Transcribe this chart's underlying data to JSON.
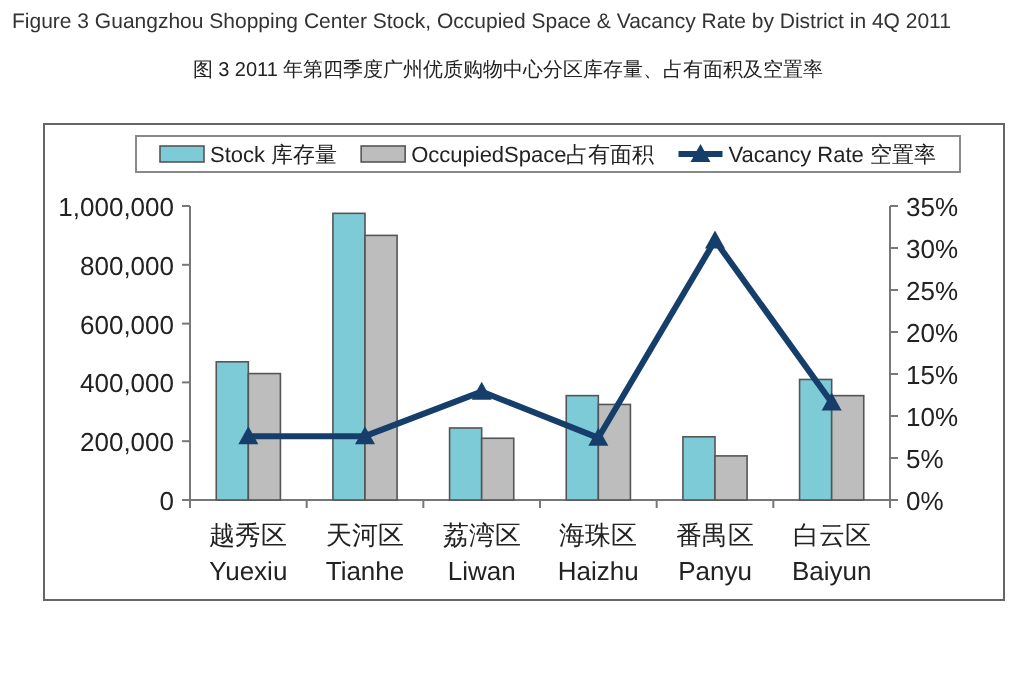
{
  "chart_data": {
    "type": "bar",
    "title": "Figure 3 Guangzhou Shopping Center Stock, Occupied Space & Vacancy Rate by District in 4Q 2011",
    "subtitle": "图 3  2011 年第四季度广州优质购物中心分区库存量、占有面积及空置率",
    "categories": [
      "越秀区\nYuexiu",
      "天河区\nTianhe",
      "荔湾区\nLiwan",
      "海珠区\nHaizhu",
      "番禺区\nPanyu",
      "白云区\nBaiyun"
    ],
    "series": [
      {
        "name": "Stock 库存量",
        "color": "#7ecbd8",
        "values": [
          470000,
          975000,
          245000,
          355000,
          215000,
          410000
        ]
      },
      {
        "name": "OccupiedSpace占有面积",
        "color": "#bdbdbd",
        "values": [
          430000,
          900000,
          210000,
          325000,
          150000,
          355000
        ]
      },
      {
        "type": "line",
        "axis": "y2",
        "name": "Vacancy Rate 空置率",
        "color": "#163e6b",
        "values": [
          7.6,
          7.6,
          12.9,
          7.4,
          30.9,
          11.6
        ]
      }
    ],
    "ylim": [
      0,
      1000000
    ],
    "yticks": [
      0,
      {
        "value": 200000,
        "label": "200,000"
      },
      {
        "value": 400000,
        "label": "400,000"
      },
      {
        "value": 600000,
        "label": "600,000"
      },
      {
        "value": 800000,
        "label": "800,000"
      },
      {
        "value": 1000000,
        "label": "1,000,000"
      }
    ],
    "y2lim": [
      0,
      35
    ],
    "y2ticks": [
      {
        "value": 0,
        "label": "0%"
      },
      {
        "value": 5,
        "label": "5%"
      },
      {
        "value": 10,
        "label": "10%"
      },
      {
        "value": 15,
        "label": "15%"
      },
      {
        "value": 20,
        "label": "20%"
      },
      {
        "value": 25,
        "label": "25%"
      },
      {
        "value": 30,
        "label": "30%"
      },
      {
        "value": 35,
        "label": "35%"
      }
    ],
    "legend": "top",
    "marker": "triangle",
    "grid": false
  }
}
